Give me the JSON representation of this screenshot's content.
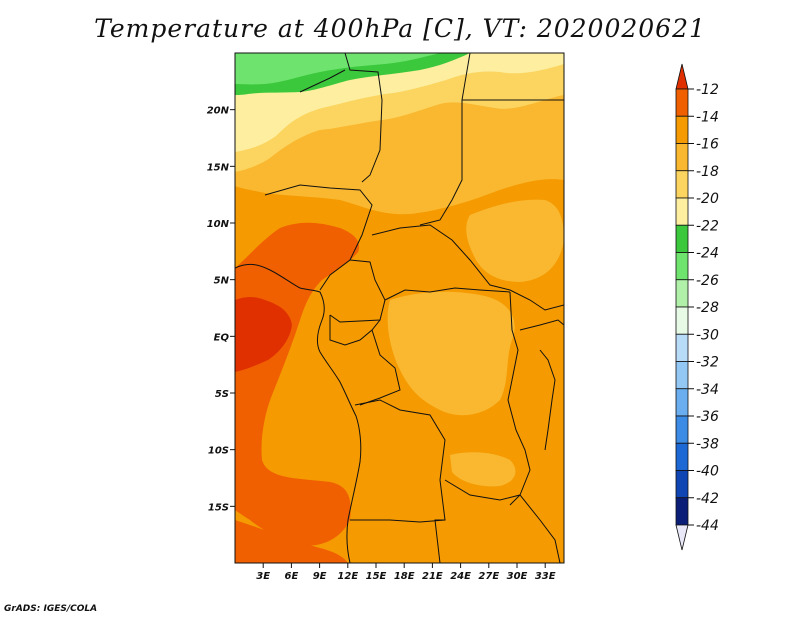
{
  "title": "Temperature at 400hPa [C], VT: 2020020621",
  "credit": "GrADS: IGES/COLA",
  "map": {
    "lon_range": [
      0,
      35
    ],
    "lat_range": [
      -20,
      25
    ],
    "lat_ticks": [
      {
        "value": 20,
        "label": "20N"
      },
      {
        "value": 15,
        "label": "15N"
      },
      {
        "value": 10,
        "label": "10N"
      },
      {
        "value": 5,
        "label": "5N"
      },
      {
        "value": 0,
        "label": "EQ"
      },
      {
        "value": -5,
        "label": "5S"
      },
      {
        "value": -10,
        "label": "10S"
      },
      {
        "value": -15,
        "label": "15S"
      }
    ],
    "lon_ticks": [
      {
        "value": 3,
        "label": "3E"
      },
      {
        "value": 6,
        "label": "6E"
      },
      {
        "value": 9,
        "label": "9E"
      },
      {
        "value": 12,
        "label": "12E"
      },
      {
        "value": 15,
        "label": "15E"
      },
      {
        "value": 18,
        "label": "18E"
      },
      {
        "value": 21,
        "label": "21E"
      },
      {
        "value": 24,
        "label": "24E"
      },
      {
        "value": 27,
        "label": "27E"
      },
      {
        "value": 30,
        "label": "30E"
      },
      {
        "value": 33,
        "label": "33E"
      }
    ]
  },
  "colorbar": {
    "labels": [
      "-12",
      "-14",
      "-16",
      "-18",
      "-20",
      "-22",
      "-24",
      "-26",
      "-28",
      "-30",
      "-32",
      "-34",
      "-36",
      "-38",
      "-40",
      "-42",
      "-44"
    ],
    "colors": [
      "#e03000",
      "#f06000",
      "#f59a00",
      "#f9b830",
      "#fcd560",
      "#fdeea0",
      "#3cc83c",
      "#6ee46e",
      "#b0f0a8",
      "#e6fae6",
      "#b8dcf8",
      "#94c8f4",
      "#6aaef0",
      "#3c8ce6",
      "#1c68d4",
      "#1046b4",
      "#0a1e78"
    ],
    "top_cap_color": "#e03000",
    "bottom_cap_color": "#e8e8f8"
  }
}
